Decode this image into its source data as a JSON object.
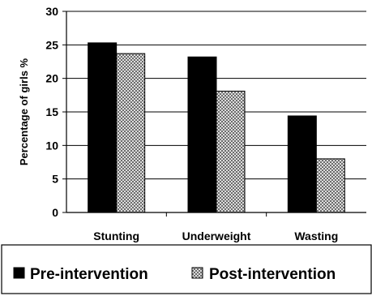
{
  "chart_data": {
    "type": "bar",
    "categories": [
      "Stunting",
      "Underweight",
      "Wasting"
    ],
    "series": [
      {
        "name": "Pre-intervention",
        "values": [
          25.3,
          23.2,
          14.4
        ],
        "color": "#000000",
        "pattern": "solid"
      },
      {
        "name": "Post-intervention",
        "values": [
          23.7,
          18.1,
          8.0
        ],
        "color": "#ffffff",
        "pattern": "crosshatch"
      }
    ],
    "title": "",
    "xlabel": "",
    "ylabel": "Percentage of girls %",
    "ylim": [
      0,
      30
    ],
    "yticks": [
      "0",
      "5",
      "10",
      "15",
      "20",
      "25",
      "30"
    ],
    "grid": true,
    "legend_position": "bottom"
  }
}
